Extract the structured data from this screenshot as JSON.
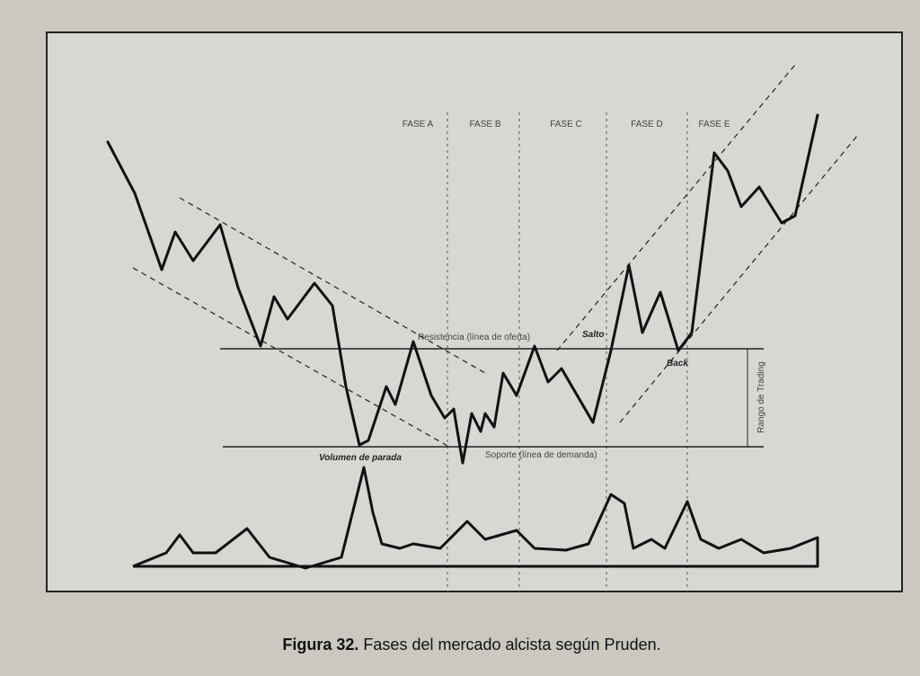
{
  "figure": {
    "phases": [
      "FASE A",
      "FASE B",
      "FASE C",
      "FASE D",
      "FASE E"
    ],
    "annotations": {
      "resistance": "Resistencia (línea de oferta)",
      "support": "Soporte (línea de demanda)",
      "jump": "Salto",
      "back": "Back",
      "range": "Rango de Trading",
      "stop_volume": "Volumen de parada"
    },
    "caption": {
      "label": "Figura 32.",
      "text": "Fases del mercado alcista según Pruden."
    }
  }
}
